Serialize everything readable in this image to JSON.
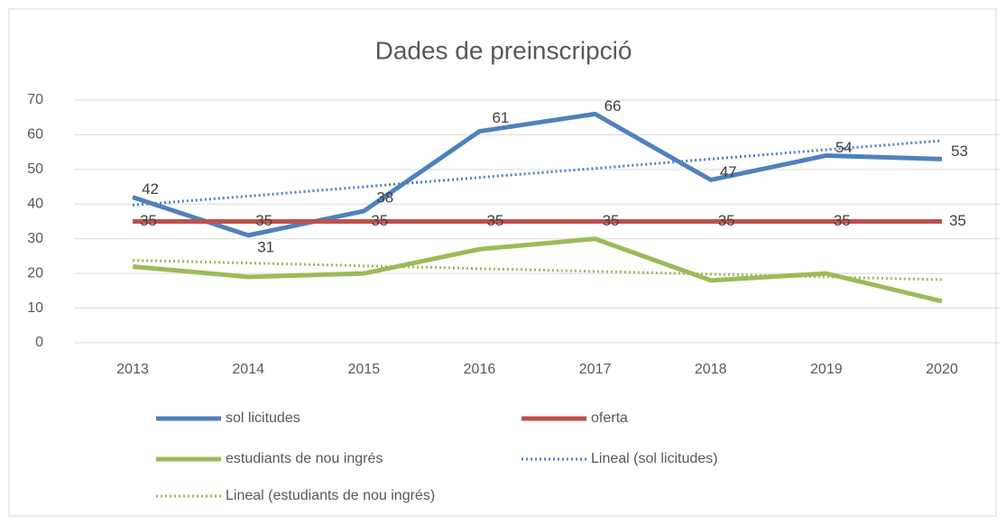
{
  "chart_data": {
    "type": "line",
    "title": "Dades de preinscripció",
    "categories": [
      "2013",
      "2014",
      "2015",
      "2016",
      "2017",
      "2018",
      "2019",
      "2020"
    ],
    "ylim": [
      0,
      70
    ],
    "yticks": [
      0,
      10,
      20,
      30,
      40,
      50,
      60,
      70
    ],
    "grid": true,
    "legend": "bottom",
    "series": [
      {
        "name": "sol licitudes",
        "color": "#4f81bd",
        "data_labels": true,
        "values": [
          42,
          31,
          38,
          61,
          66,
          47,
          54,
          53
        ]
      },
      {
        "name": "oferta",
        "color": "#c0504d",
        "data_labels": true,
        "values": [
          35,
          35,
          35,
          35,
          35,
          35,
          35,
          35
        ]
      },
      {
        "name": "estudiants de nou ingrés",
        "color": "#9bbb59",
        "values": [
          22,
          19,
          20,
          27,
          30,
          18,
          20,
          12
        ]
      },
      {
        "name": "Lineal (sol licitudes)",
        "color": "#4f81bd",
        "dotted": true,
        "values": [
          39.7,
          42.3,
          45.0,
          47.7,
          50.3,
          53.0,
          55.7,
          58.3
        ]
      },
      {
        "name": "Lineal (estudiants de nou ingrés)",
        "color": "#9bbb59",
        "dotted": true,
        "values": [
          23.8,
          23.0,
          22.2,
          21.4,
          20.6,
          19.8,
          19.0,
          18.2
        ]
      }
    ]
  }
}
